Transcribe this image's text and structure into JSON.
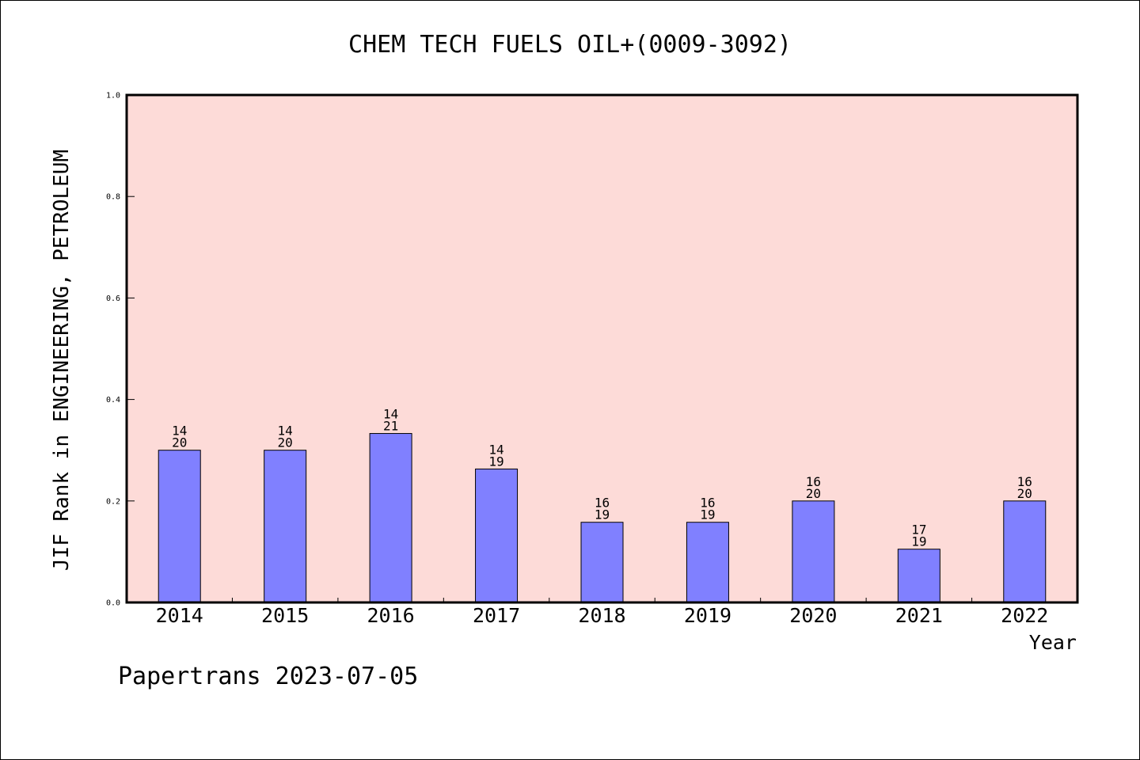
{
  "chart_data": {
    "type": "bar",
    "title": "CHEM TECH FUELS OIL+(0009-3092)",
    "xlabel": "Year",
    "ylabel": "JIF Rank in ENGINEERING, PETROLEUM",
    "ylim": [
      0,
      1.0
    ],
    "yticks": [
      "0.0",
      "0.2",
      "0.4",
      "0.6",
      "0.8",
      "1.0"
    ],
    "categories": [
      "2014",
      "2015",
      "2016",
      "2017",
      "2018",
      "2019",
      "2020",
      "2021",
      "2022"
    ],
    "values": [
      0.3,
      0.3,
      0.333,
      0.263,
      0.158,
      0.158,
      0.2,
      0.105,
      0.2
    ],
    "bar_labels": [
      {
        "rank": "14",
        "total": "20"
      },
      {
        "rank": "14",
        "total": "20"
      },
      {
        "rank": "14",
        "total": "21"
      },
      {
        "rank": "14",
        "total": "19"
      },
      {
        "rank": "16",
        "total": "19"
      },
      {
        "rank": "16",
        "total": "19"
      },
      {
        "rank": "16",
        "total": "20"
      },
      {
        "rank": "17",
        "total": "19"
      },
      {
        "rank": "16",
        "total": "20"
      }
    ],
    "grid": false,
    "colors": {
      "plot_background": "#fddbd8",
      "bar_fill": "#8080ff",
      "bar_stroke": "#000000"
    }
  },
  "footer": "Papertrans 2023-07-05"
}
